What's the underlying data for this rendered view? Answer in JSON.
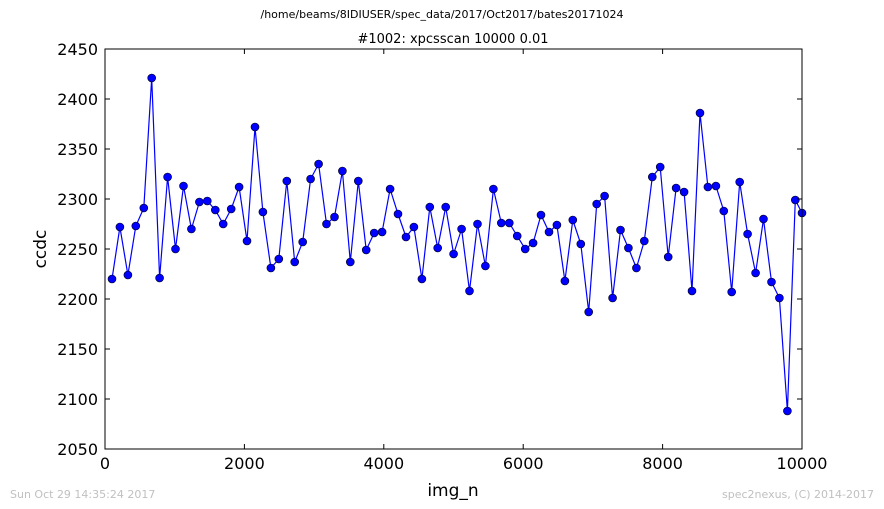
{
  "header": {
    "path": "/home/beams/8IDIUSER/spec_data/2017/Oct2017/bates20171024"
  },
  "footer": {
    "timestamp": "Sun Oct 29 14:35:24 2017",
    "credit": "spec2nexus, (C) 2014-2017"
  },
  "colors": {
    "series": "#0000ff",
    "axes": "#000000",
    "footer": "#c0c0c0"
  },
  "chart_data": {
    "type": "line",
    "title": "#1002: xpcsscan 10000 0.01",
    "xlabel": "img_n",
    "ylabel": "ccdc",
    "xlim": [
      0,
      10000
    ],
    "ylim": [
      2050,
      2450
    ],
    "xticks": [
      "0",
      "2000",
      "4000",
      "6000",
      "8000",
      "10000"
    ],
    "yticks": [
      "2050",
      "2100",
      "2150",
      "2200",
      "2250",
      "2300",
      "2350",
      "2400",
      "2450"
    ],
    "grid": false,
    "marker": "circle",
    "series": [
      {
        "x": [
          100,
          214,
          328,
          442,
          556,
          670,
          784,
          898,
          1012,
          1126,
          1240,
          1354,
          1468,
          1582,
          1696,
          1810,
          1924,
          2038,
          2152,
          2266,
          2380,
          2494,
          2608,
          2722,
          2836,
          2950,
          3064,
          3178,
          3292,
          3406,
          3520,
          3634,
          3748,
          3862,
          3976,
          4090,
          4204,
          4318,
          4432,
          4546,
          4660,
          4774,
          4888,
          5002,
          5116,
          5230,
          5344,
          5458,
          5572,
          5686,
          5800,
          5914,
          6028,
          6142,
          6256,
          6370,
          6484,
          6598,
          6712,
          6826,
          6940,
          7054,
          7168,
          7282,
          7396,
          7510,
          7624,
          7738,
          7852,
          7966,
          8080,
          8194,
          8308,
          8422,
          8536,
          8650,
          8764,
          8878,
          8992,
          9106,
          9220,
          9334,
          9448,
          9562,
          9676,
          9790,
          9904,
          10000
        ],
        "y": [
          2220,
          2272,
          2224,
          2273,
          2291,
          2421,
          2221,
          2322,
          2250,
          2313,
          2270,
          2297,
          2298,
          2289,
          2275,
          2290,
          2312,
          2258,
          2372,
          2287,
          2231,
          2240,
          2318,
          2237,
          2257,
          2320,
          2335,
          2275,
          2282,
          2328,
          2237,
          2318,
          2249,
          2266,
          2267,
          2310,
          2285,
          2262,
          2272,
          2220,
          2292,
          2251,
          2292,
          2245,
          2270,
          2208,
          2275,
          2233,
          2310,
          2276,
          2276,
          2263,
          2250,
          2256,
          2284,
          2267,
          2274,
          2218,
          2279,
          2255,
          2187,
          2295,
          2303,
          2201,
          2269,
          2251,
          2231,
          2258,
          2322,
          2332,
          2242,
          2311,
          2307,
          2208,
          2386,
          2312,
          2313,
          2288,
          2207,
          2317,
          2265,
          2226,
          2280,
          2217,
          2201,
          2088,
          2299,
          2286
        ]
      }
    ]
  }
}
